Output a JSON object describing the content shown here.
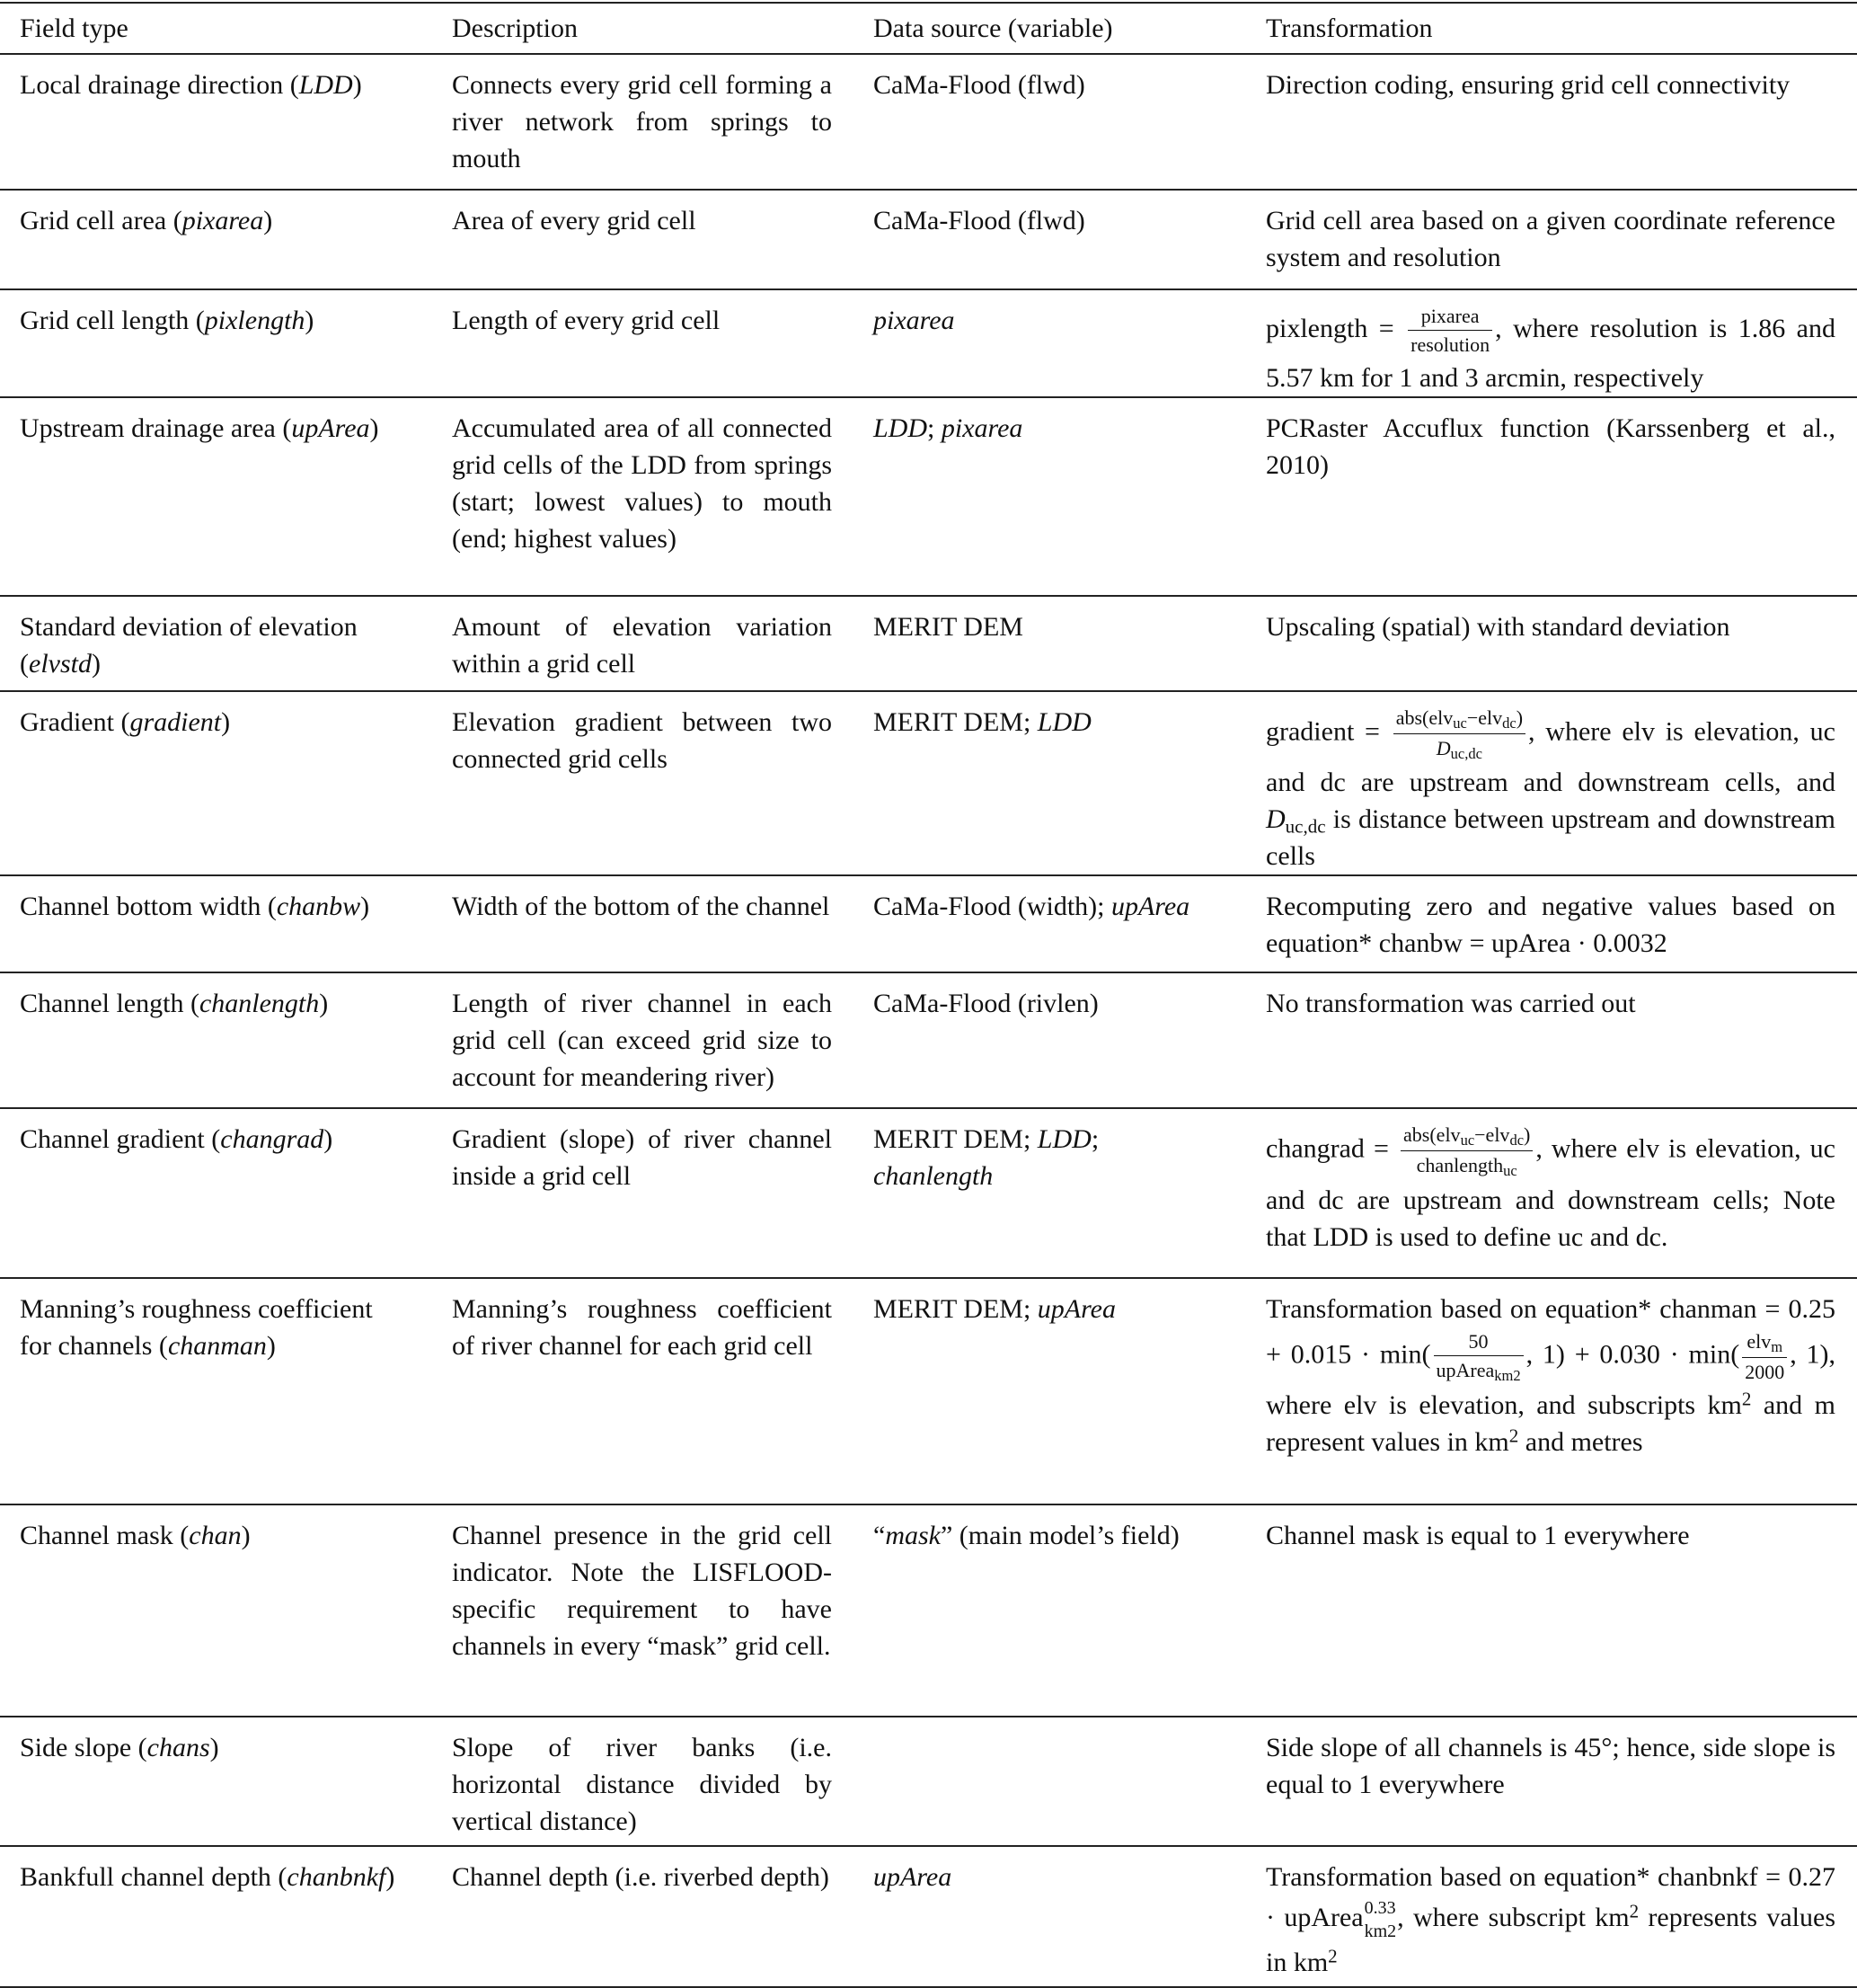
{
  "header": [
    "Field type",
    "Description",
    "Data source (variable)",
    "Transformation"
  ],
  "rows": [
    {
      "field": {
        "name": "Local drainage direction (",
        "var": "LDD",
        "end": ")"
      },
      "description": "Connects every grid cell forming a river network from springs to mouth",
      "source": [
        {
          "t": "CaMa-Flood (flwd)"
        }
      ],
      "transformation": [
        {
          "t": "Direction coding, ensuring grid cell connectivity"
        }
      ]
    },
    {
      "field": {
        "name": "Grid cell area (",
        "var": "pixarea",
        "end": ")"
      },
      "description": "Area of every grid cell",
      "source": [
        {
          "t": "CaMa-Flood (flwd)"
        }
      ],
      "transformation": [
        {
          "t": "Grid cell area based on a given coordinate reference system and resolution"
        }
      ]
    },
    {
      "field": {
        "name": "Grid cell length (",
        "var": "pixlength",
        "end": ")"
      },
      "description": "Length of every grid cell",
      "source": [
        {
          "i": "pixarea"
        }
      ],
      "transformation": [
        {
          "t": "pixlength = "
        },
        {
          "frac": {
            "num": [
              {
                "t": "pixarea"
              }
            ],
            "den": [
              {
                "t": "resolution"
              }
            ]
          }
        },
        {
          "t": ", where resolution is 1.86 and 5.57 km for 1 and 3 arcmin, respectively"
        }
      ]
    },
    {
      "field": {
        "name": "Upstream drainage area (",
        "var": "upArea",
        "end": ")"
      },
      "description": "Accumulated area of all connected grid cells of the LDD from springs (start; lowest values) to mouth (end; highest values)",
      "source": [
        {
          "i": "LDD"
        },
        {
          "t": "; "
        },
        {
          "i": "pixarea"
        }
      ],
      "transformation": [
        {
          "t": "PCRaster Accuflux function (Karssenberg et al., 2010)"
        }
      ]
    },
    {
      "field": {
        "name": "Standard deviation of elevation (",
        "var": "elvstd",
        "end": ")"
      },
      "description": "Amount of elevation variation within a grid cell",
      "source": [
        {
          "t": "MERIT DEM"
        }
      ],
      "transformation": [
        {
          "t": "Upscaling (spatial) with standard deviation"
        }
      ]
    },
    {
      "field": {
        "name": "Gradient (",
        "var": "gradient",
        "end": ")"
      },
      "description": "Elevation gradient between two connected grid cells",
      "source": [
        {
          "t": "MERIT DEM; "
        },
        {
          "i": "LDD"
        }
      ],
      "transformation": [
        {
          "t": "gradient = "
        },
        {
          "frac": {
            "num": [
              {
                "t": "abs(elv"
              },
              {
                "sub": "uc"
              },
              {
                "t": "−elv"
              },
              {
                "sub": "dc"
              },
              {
                "t": ")"
              }
            ],
            "den": [
              {
                "i": "D"
              },
              {
                "sub": "uc,dc"
              }
            ]
          }
        },
        {
          "t": ", where elv is elevation, uc and dc are upstream and downstream cells, and "
        },
        {
          "i": "D"
        },
        {
          "sub": "uc,dc"
        },
        {
          "t": " is distance between upstream and downstream cells"
        }
      ]
    },
    {
      "field": {
        "name": "Channel bottom width (",
        "var": "chanbw",
        "end": ")"
      },
      "description": "Width of the bottom of the channel",
      "source": [
        {
          "t": "CaMa-Flood (width); "
        },
        {
          "i": "upArea"
        }
      ],
      "transformation": [
        {
          "t": "Recomputing zero and negative values based on equation* chanbw = upArea · 0.0032"
        }
      ]
    },
    {
      "field": {
        "name": "Channel length (",
        "var": "chanlength",
        "end": ")"
      },
      "description": "Length of river channel in each grid cell (can exceed grid size to account for meandering river)",
      "source": [
        {
          "t": "CaMa-Flood (rivlen)"
        }
      ],
      "transformation": [
        {
          "t": "No transformation was carried out"
        }
      ]
    },
    {
      "field": {
        "name": "Channel gradient (",
        "var": "changrad",
        "end": ")"
      },
      "description": "Gradient (slope) of river channel inside a grid cell",
      "source": [
        {
          "t": "MERIT DEM; "
        },
        {
          "i": "LDD"
        },
        {
          "t": "; "
        },
        {
          "i": "chanlength"
        }
      ],
      "transformation": [
        {
          "t": "changrad = "
        },
        {
          "frac": {
            "num": [
              {
                "t": "abs(elv"
              },
              {
                "sub": "uc"
              },
              {
                "t": "−elv"
              },
              {
                "sub": "dc"
              },
              {
                "t": ")"
              }
            ],
            "den": [
              {
                "t": "chanlength"
              },
              {
                "sub": "uc"
              }
            ]
          }
        },
        {
          "t": ", where elv is elevation, uc and dc are upstream and downstream cells; Note that LDD is used to define uc and dc."
        }
      ]
    },
    {
      "field": {
        "name": "Manning’s roughness coefficient for channels (",
        "var": "chanman",
        "end": ")"
      },
      "description": "Manning’s roughness coefficient of river channel for each grid cell",
      "source": [
        {
          "t": "MERIT DEM; "
        },
        {
          "i": "upArea"
        }
      ],
      "transformation": [
        {
          "t": "Transformation based on equation* chanman = 0.25 + 0.015 · min("
        },
        {
          "frac": {
            "num": [
              {
                "t": "50"
              }
            ],
            "den": [
              {
                "t": "upArea"
              },
              {
                "sub": "km2"
              }
            ]
          }
        },
        {
          "t": ", 1) + 0.030 · min("
        },
        {
          "frac": {
            "num": [
              {
                "t": "elv"
              },
              {
                "sub": "m"
              }
            ],
            "den": [
              {
                "t": "2000"
              }
            ]
          }
        },
        {
          "t": ", 1), where elv is elevation, and subscripts km"
        },
        {
          "sup": "2"
        },
        {
          "t": " and m represent values in km"
        },
        {
          "sup": "2"
        },
        {
          "t": " and metres"
        }
      ]
    },
    {
      "field": {
        "name": "Channel mask (",
        "var": "chan",
        "end": ")"
      },
      "description": "Channel presence in the grid cell indicator. Note the LISFLOOD-specific requirement to have channels in every “mask” grid cell.",
      "source": [
        {
          "t": "“"
        },
        {
          "i": "mask"
        },
        {
          "t": "” (main model’s field)"
        }
      ],
      "transformation": [
        {
          "t": "Channel mask is equal to 1 everywhere"
        }
      ]
    },
    {
      "field": {
        "name": "Side slope (",
        "var": "chans",
        "end": ")"
      },
      "description": "Slope of river banks (i.e. horizontal distance divided by vertical distance)",
      "source": [],
      "transformation": [
        {
          "t": "Side slope of all channels is 45°; hence, side slope is equal to 1 everywhere"
        }
      ]
    },
    {
      "field": {
        "name": "Bankfull channel depth (",
        "var": "chanbnkf",
        "end": ")"
      },
      "description": "Channel depth (i.e. riverbed depth)",
      "source": [
        {
          "i": "upArea"
        }
      ],
      "transformation": [
        {
          "t": "Transformation based on equation* chanbnkf = 0.27 · upArea"
        },
        {
          "supsub": {
            "sup": "0.33",
            "sub": "km2"
          }
        },
        {
          "t": ", where subscript km"
        },
        {
          "sup": "2"
        },
        {
          "t": " represents values in km"
        },
        {
          "sup": "2"
        }
      ]
    }
  ]
}
